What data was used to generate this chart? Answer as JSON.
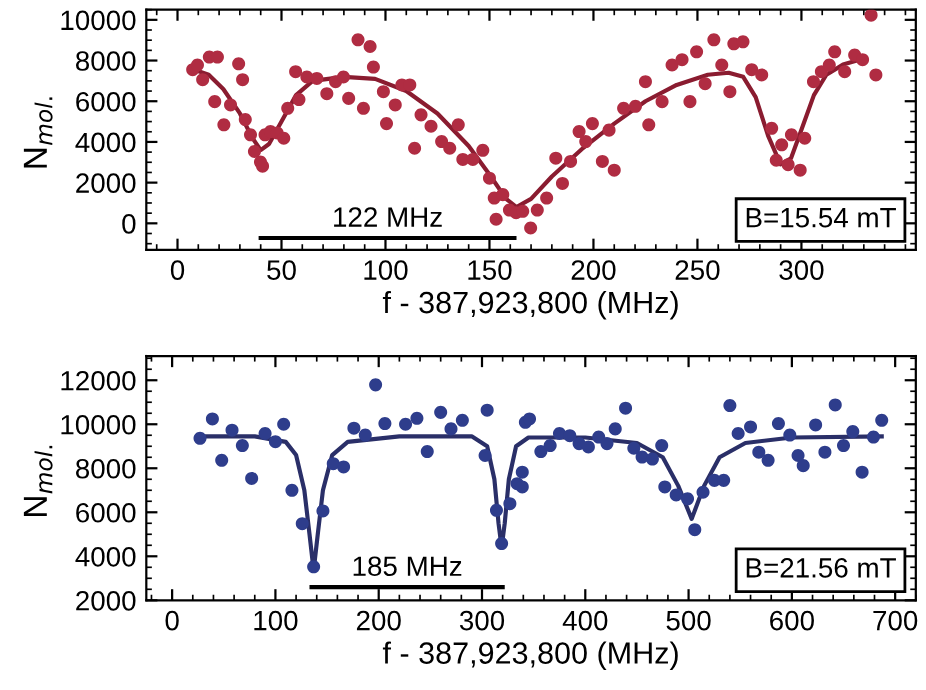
{
  "chart_data": [
    {
      "type": "scatter",
      "xlabel": "f - 387,923,800 (MHz)",
      "ylabel": "N$_{mol.}$",
      "xlim": [
        -15,
        355
      ],
      "ylim": [
        -1300,
        10500
      ],
      "xticks": [
        0,
        50,
        100,
        150,
        200,
        250,
        300
      ],
      "yticks": [
        0,
        2000,
        4000,
        6000,
        8000,
        10000
      ],
      "marker": "circle",
      "grid": false,
      "annotations": [
        {
          "text": "122 MHz",
          "x": 101,
          "y": -720
        },
        "B=15.54 mT"
      ],
      "series": [
        {
          "color": "#b02c42",
          "x": [
            7.3,
            9.6,
            12.1,
            15.3,
            19.2,
            17.9,
            22.3,
            25.5,
            29.4,
            31.3,
            32.6,
            35.1,
            37.0,
            39.9,
            40.9,
            42.1,
            44.7,
            47.9,
            51.1,
            53.0,
            56.8,
            58.4,
            62.2,
            67.0,
            71.8,
            76.0,
            79.8,
            82.3,
            86.8,
            89.4,
            92.6,
            94.2,
            99.0,
            100.5,
            104.7,
            107.9,
            111.7,
            114.0,
            117.1,
            121.9,
            127.0,
            130.9,
            135.0,
            137.2,
            142.0,
            146.8,
            150.0,
            152.3,
            153.2,
            156.4,
            159.6,
            162.8,
            166.0,
            169.8,
            173.0,
            177.5,
            181.9,
            185.1,
            189.0,
            193.1,
            196.3,
            199.5,
            204.3,
            207.5,
            210.0,
            214.5,
            220.2,
            225.0,
            226.6,
            233.0,
            237.8,
            242.6,
            246.4,
            249.6,
            253.7,
            257.9,
            261.7,
            265.6,
            267.5,
            271.9,
            276.1,
            280.9,
            285.7,
            287.9,
            290.5,
            293.6,
            295.2,
            299.4,
            301.6,
            305.8,
            309.6,
            313.4,
            316.0,
            320.8,
            325.6,
            329.4,
            333.5,
            335.8
          ],
          "values": [
            7550,
            7780,
            7060,
            8170,
            8170,
            5980,
            4840,
            5820,
            7840,
            7060,
            5100,
            4350,
            3530,
            3010,
            2810,
            4350,
            4510,
            4440,
            4180,
            5650,
            7450,
            6080,
            7190,
            7120,
            6370,
            6960,
            7190,
            6140,
            9020,
            5650,
            8690,
            7680,
            6470,
            4900,
            5820,
            6800,
            6800,
            3690,
            5330,
            4770,
            4020,
            3690,
            4840,
            3140,
            3140,
            3590,
            2220,
            1240,
            200,
            1410,
            650,
            520,
            590,
            -230,
            650,
            1240,
            3200,
            1960,
            3040,
            4510,
            4020,
            4900,
            3040,
            4580,
            2610,
            5650,
            5750,
            6960,
            4840,
            5980,
            7780,
            8040,
            5980,
            8430,
            6860,
            9020,
            7780,
            6470,
            8820,
            8920,
            7550,
            7290,
            4670,
            3100,
            3860,
            2880,
            4350,
            2610,
            4180,
            6960,
            7450,
            7780,
            8430,
            7450,
            8270,
            8040,
            10230,
            7290
          ]
        },
        {
          "type": "line",
          "color": "#8a1c30",
          "marker": "none",
          "x": [
            8,
            15,
            22,
            30,
            36,
            40,
            44,
            50,
            57,
            65,
            80,
            95,
            110,
            125,
            140,
            150,
            158,
            163,
            170,
            180,
            195,
            210,
            225,
            240,
            255,
            265,
            272,
            278,
            284,
            290,
            295,
            300,
            306,
            312,
            320,
            330
          ],
          "values": [
            7550,
            7300,
            6600,
            5400,
            4200,
            3600,
            3900,
            5000,
            6300,
            7000,
            7200,
            7100,
            6500,
            5400,
            3800,
            2400,
            1200,
            800,
            1200,
            2300,
            3700,
            4900,
            6000,
            6800,
            7300,
            7400,
            7200,
            6200,
            4300,
            2900,
            3200,
            4600,
            6300,
            7300,
            7800,
            8100
          ]
        },
        {
          "type": "line",
          "color": "#000000",
          "marker": "none",
          "x": [
            40,
            162
          ],
          "values": [
            -720,
            -720
          ]
        }
      ]
    },
    {
      "type": "scatter",
      "xlabel": "f - 387,923,800 (MHz)",
      "ylabel": "N$_{mol.}$",
      "xlim": [
        -25,
        720
      ],
      "ylim": [
        2000,
        13100
      ],
      "xticks": [
        0,
        100,
        200,
        300,
        400,
        500,
        600,
        700
      ],
      "yticks": [
        2000,
        4000,
        6000,
        8000,
        10000,
        12000
      ],
      "marker": "circle",
      "grid": false,
      "annotations": [
        {
          "text": "185 MHz",
          "x": 227.5,
          "y": 2600
        },
        "B=21.56 mT"
      ],
      "series": [
        {
          "color": "#2e3d8c",
          "x": [
            27,
            39,
            48,
            58,
            68,
            77,
            90,
            100,
            108,
            116,
            126,
            137,
            146,
            156,
            166,
            176,
            187,
            197,
            206,
            226,
            237,
            247,
            260,
            270,
            281,
            303,
            305,
            314,
            319,
            327,
            334,
            339,
            339,
            342,
            346,
            357,
            366,
            375,
            385,
            394,
            403,
            413,
            421,
            429,
            439,
            447,
            455,
            465,
            474,
            477,
            488,
            499,
            506,
            514,
            525,
            534,
            540,
            548,
            560,
            568,
            577,
            587,
            598,
            606,
            611,
            623,
            632,
            642,
            650,
            659,
            668,
            679,
            687
          ],
          "values": [
            9360,
            10240,
            8360,
            9730,
            9030,
            7540,
            9580,
            9210,
            10000,
            7000,
            5480,
            3520,
            6060,
            8210,
            8060,
            9820,
            9510,
            11790,
            10030,
            10000,
            10270,
            8760,
            10540,
            9790,
            10180,
            8580,
            10640,
            6090,
            4580,
            6390,
            7300,
            7820,
            7150,
            10090,
            10240,
            8760,
            9030,
            9580,
            9480,
            9120,
            8970,
            9420,
            9120,
            9790,
            10730,
            8910,
            8510,
            8420,
            9030,
            7150,
            6790,
            6610,
            5210,
            6910,
            7450,
            7450,
            10850,
            9580,
            9880,
            8730,
            8360,
            10030,
            9510,
            8580,
            8120,
            9970,
            8730,
            10880,
            9030,
            9670,
            7820,
            9420,
            10180
          ]
        },
        {
          "type": "line",
          "color": "#2a2f68",
          "marker": "none",
          "x": [
            27,
            80,
            110,
            120,
            128,
            133,
            137,
            141,
            146,
            155,
            170,
            220,
            290,
            305,
            312,
            316,
            319,
            322,
            326,
            333,
            345,
            400,
            450,
            475,
            490,
            503,
            515,
            530,
            555,
            600,
            687
          ],
          "values": [
            9450,
            9450,
            9200,
            8600,
            7000,
            5000,
            3350,
            5000,
            7000,
            8600,
            9200,
            9450,
            9450,
            9000,
            7500,
            5500,
            4400,
            5500,
            7500,
            9000,
            9400,
            9400,
            9150,
            8500,
            7200,
            5700,
            7200,
            8500,
            9150,
            9400,
            9450
          ]
        },
        {
          "type": "line",
          "color": "#000000",
          "marker": "none",
          "x": [
            135,
            320
          ],
          "values": [
            2600,
            2600
          ]
        }
      ]
    }
  ]
}
